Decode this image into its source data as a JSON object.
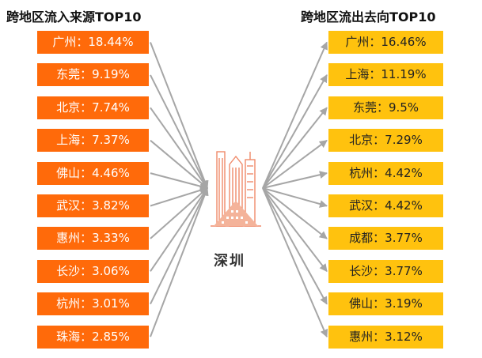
{
  "inflow": {
    "title": "跨地区流入来源TOP10",
    "items": [
      {
        "label": "广州：18.44%"
      },
      {
        "label": "东莞：9.19%"
      },
      {
        "label": "北京：7.74%"
      },
      {
        "label": "上海：7.37%"
      },
      {
        "label": "佛山：4.46%"
      },
      {
        "label": "武汉：3.82%"
      },
      {
        "label": "惠州：3.33%"
      },
      {
        "label": "长沙：3.06%"
      },
      {
        "label": "杭州：3.01%"
      },
      {
        "label": "珠海：2.85%"
      }
    ]
  },
  "outflow": {
    "title": "跨地区流出去向TOP10",
    "items": [
      {
        "label": "广州：16.46%"
      },
      {
        "label": "上海：11.19%"
      },
      {
        "label": "东莞：9.5%"
      },
      {
        "label": "北京：7.29%"
      },
      {
        "label": "杭州：4.42%"
      },
      {
        "label": "武汉：4.42%"
      },
      {
        "label": "成都：3.77%"
      },
      {
        "label": "长沙：3.77%"
      },
      {
        "label": "佛山：3.19%"
      },
      {
        "label": "惠州：3.12%"
      }
    ]
  },
  "center": {
    "city": "深圳",
    "icon": "city-skyline-icon"
  },
  "colors": {
    "inflow_box": "#ff6a0a",
    "outflow_box": "#ffc20e",
    "arrow": "#a6a6a6",
    "icon": "#f08a6a"
  }
}
